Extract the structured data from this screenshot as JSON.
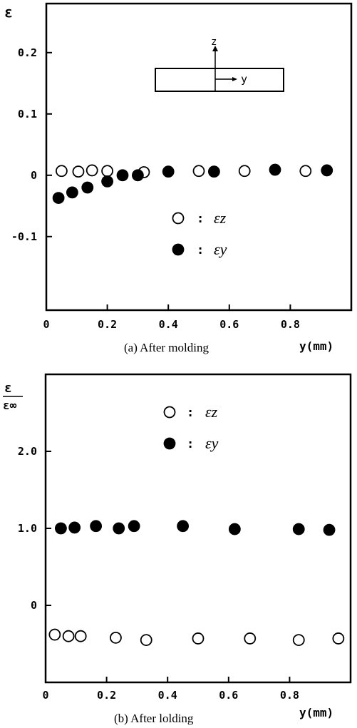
{
  "chart_data": [
    {
      "type": "scatter",
      "title": "",
      "caption": "(a) After molding",
      "y_axis_label": "ε",
      "x_axis_label": "y(mm)",
      "xlim": [
        0,
        1.0
      ],
      "ylim": [
        -0.22,
        0.28
      ],
      "x_ticks": [
        "0",
        "0.2",
        "0.4",
        "0.6",
        "0.8"
      ],
      "x_tick_values": [
        0,
        0.2,
        0.4,
        0.6,
        0.8
      ],
      "y_ticks": [
        "0.2",
        "0.1",
        "0",
        "-0.1"
      ],
      "y_tick_values": [
        0.2,
        0.1,
        0,
        -0.1
      ],
      "legend": {
        "placement": "center",
        "items": [
          {
            "marker": "open-circle",
            "sep": ":",
            "label": "εz"
          },
          {
            "marker": "filled-circle",
            "sep": ":",
            "label": "εy"
          }
        ]
      },
      "inset": {
        "axis_z": "z",
        "axis_y": "y"
      },
      "series": [
        {
          "name": "εz",
          "marker": "open",
          "points": [
            [
              0.05,
              0.007
            ],
            [
              0.105,
              0.006
            ],
            [
              0.15,
              0.008
            ],
            [
              0.2,
              0.007
            ],
            [
              0.32,
              0.005
            ],
            [
              0.5,
              0.007
            ],
            [
              0.65,
              0.007
            ],
            [
              0.85,
              0.007
            ]
          ]
        },
        {
          "name": "εy",
          "marker": "filled",
          "points": [
            [
              0.04,
              -0.037
            ],
            [
              0.085,
              -0.028
            ],
            [
              0.135,
              -0.02
            ],
            [
              0.2,
              -0.01
            ],
            [
              0.25,
              0.0
            ],
            [
              0.3,
              0.0
            ],
            [
              0.4,
              0.006
            ],
            [
              0.55,
              0.006
            ],
            [
              0.75,
              0.009
            ],
            [
              0.92,
              0.008
            ]
          ]
        }
      ]
    },
    {
      "type": "scatter",
      "title": "",
      "caption": "(b) After lolding",
      "y_axis_label_num": "ε",
      "y_axis_label_den": "ε∞",
      "x_axis_label": "y(mm)",
      "xlim": [
        0,
        1.0
      ],
      "ylim": [
        -1.0,
        3.0
      ],
      "x_ticks": [
        "0",
        "0.2",
        "0.4",
        "0.6",
        "0.8"
      ],
      "x_tick_values": [
        0,
        0.2,
        0.4,
        0.6,
        0.8
      ],
      "y_ticks": [
        "2.0",
        "1.0",
        "0"
      ],
      "y_tick_values": [
        2.0,
        1.0,
        0
      ],
      "legend": {
        "placement": "top-center",
        "items": [
          {
            "marker": "open-circle",
            "sep": ":",
            "label": "εz"
          },
          {
            "marker": "filled-circle",
            "sep": ":",
            "label": "εy"
          }
        ]
      },
      "series": [
        {
          "name": "εz",
          "marker": "open",
          "points": [
            [
              0.03,
              -0.38
            ],
            [
              0.075,
              -0.4
            ],
            [
              0.115,
              -0.4
            ],
            [
              0.23,
              -0.42
            ],
            [
              0.33,
              -0.45
            ],
            [
              0.5,
              -0.43
            ],
            [
              0.67,
              -0.43
            ],
            [
              0.83,
              -0.45
            ],
            [
              0.96,
              -0.43
            ]
          ]
        },
        {
          "name": "εy",
          "marker": "filled",
          "points": [
            [
              0.05,
              1.0
            ],
            [
              0.095,
              1.01
            ],
            [
              0.165,
              1.03
            ],
            [
              0.24,
              1.0
            ],
            [
              0.29,
              1.03
            ],
            [
              0.45,
              1.03
            ],
            [
              0.62,
              0.99
            ],
            [
              0.83,
              0.99
            ],
            [
              0.93,
              0.98
            ]
          ]
        }
      ]
    }
  ]
}
